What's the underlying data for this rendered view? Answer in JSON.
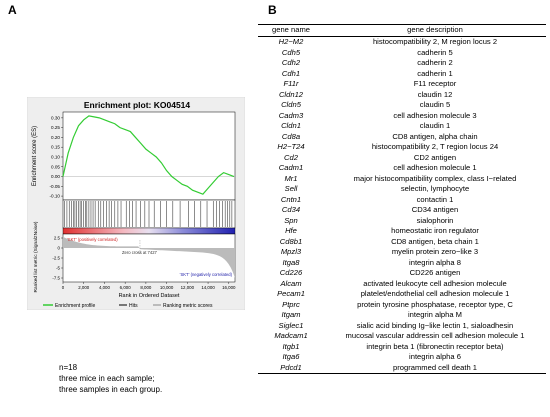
{
  "panels": {
    "a": "A",
    "b": "B"
  },
  "enrichment_plot": {
    "title": "Enrichment plot: KO04514",
    "es_ylabel": "Enrichment score (ES)",
    "rank_ylabel": "Ranked list metric (Signal2Noise)",
    "xlabel": "Rank in Ordered Dataset",
    "pos_label": "'SKT' (positively correlated)",
    "neg_label": "'SKT' (negatively correlated)",
    "zero_cross": "Zero cross at 7427",
    "legend": [
      "Enrichment profile",
      "Hits",
      "Ranking metric scores"
    ],
    "colors": {
      "profile": "#33cc33",
      "hits": "#000000",
      "metric": "#bbbbbb",
      "heat_pos": "#e03030",
      "heat_neg": "#2020b0"
    }
  },
  "chart_data": {
    "type": "line",
    "x": [
      0,
      500,
      1000,
      1500,
      2000,
      2500,
      3000,
      3500,
      4000,
      4500,
      5000,
      5500,
      6000,
      6500,
      7000,
      7500,
      8000,
      8500,
      9000,
      9500,
      10000,
      10500,
      11000,
      11500,
      12000,
      12500,
      13000,
      13500,
      14000,
      14500,
      15000,
      15500,
      16000,
      16500
    ],
    "series": [
      {
        "name": "Enrichment profile",
        "values": [
          0.0,
          0.12,
          0.2,
          0.26,
          0.29,
          0.31,
          0.305,
          0.3,
          0.29,
          0.28,
          0.27,
          0.25,
          0.24,
          0.23,
          0.2,
          0.17,
          0.14,
          0.12,
          0.1,
          0.07,
          0.03,
          0.0,
          -0.02,
          -0.04,
          -0.05,
          -0.07,
          -0.08,
          -0.09,
          -0.06,
          -0.03,
          0.0,
          0.02,
          0.01,
          0.0
        ]
      }
    ],
    "xlim": [
      0,
      16600
    ],
    "ylim": [
      -0.12,
      0.33
    ],
    "yticks": [
      -0.1,
      -0.05,
      0.0,
      0.05,
      0.1,
      0.15,
      0.2,
      0.25,
      0.3
    ],
    "ytick_labels": [
      "-0.10",
      "-0.05",
      "0.00",
      "0.05",
      "0.10",
      "0.15",
      "0.20",
      "0.25",
      "0.30"
    ],
    "xticks": [
      0,
      2000,
      4000,
      6000,
      8000,
      10000,
      12000,
      14000,
      16000
    ],
    "xtick_labels": [
      "0",
      "2,000",
      "4,000",
      "6,000",
      "8,000",
      "10,000",
      "12,000",
      "14,000",
      "16,000"
    ],
    "rank_yticks": [
      2.5,
      0,
      -2.5,
      -5,
      -7.5
    ],
    "rank_ytick_labels": [
      "2.5",
      "0",
      "-2.5",
      "-5",
      "-7.5"
    ],
    "rank_ylim": [
      -8.5,
      3.5
    ],
    "zero_cross_x": 7427,
    "hits": [
      150,
      380,
      600,
      820,
      1000,
      1150,
      1300,
      1500,
      1650,
      1800,
      2000,
      2150,
      2300,
      2500,
      2700,
      2900,
      3100,
      3400,
      3650,
      3900,
      4200,
      4450,
      4700,
      5000,
      5300,
      5600,
      6100,
      6400,
      6700,
      7050,
      7500,
      7900,
      8300,
      8800,
      9400,
      10000,
      10600,
      11300,
      12100,
      12700,
      13300,
      13900,
      14500,
      14800,
      15100,
      15400,
      15650,
      15900,
      16100,
      16300
    ]
  },
  "notes": [
    "n=18",
    "three mice in each sample;",
    "three samples in each group."
  ],
  "table": {
    "headers": [
      "gene name",
      "gene description"
    ],
    "rows": [
      [
        "H2−M2",
        "histocompatibility 2, M region locus 2"
      ],
      [
        "Cdh5",
        "cadherin 5"
      ],
      [
        "Cdh2",
        "cadherin 2"
      ],
      [
        "Cdh1",
        "cadherin 1"
      ],
      [
        "F11r",
        "F11 receptor"
      ],
      [
        "Cldn12",
        "claudin 12"
      ],
      [
        "Cldn5",
        "claudin 5"
      ],
      [
        "Cadm3",
        "cell adhesion molecule 3"
      ],
      [
        "Cldn1",
        "claudin 1"
      ],
      [
        "Cd8a",
        "CD8 antigen, alpha chain"
      ],
      [
        "H2−T24",
        "histocompatibility 2, T region locus 24"
      ],
      [
        "Cd2",
        "CD2 antigen"
      ],
      [
        "Cadm1",
        "cell adhesion molecule 1"
      ],
      [
        "Mr1",
        "major histocompatibility complex, class I−related"
      ],
      [
        "Sell",
        "selectin, lymphocyte"
      ],
      [
        "Cntn1",
        "contactin 1"
      ],
      [
        "Cd34",
        "CD34 antigen"
      ],
      [
        "Spn",
        "sialophorin"
      ],
      [
        "Hfe",
        "homeostatic iron regulator"
      ],
      [
        "Cd8b1",
        "CD8 antigen, beta chain 1"
      ],
      [
        "Mpzl3",
        "myelin protein zero−like 3"
      ],
      [
        "Itga8",
        "integrin alpha 8"
      ],
      [
        "Cd226",
        "CD226 antigen"
      ],
      [
        "Alcam",
        "activated leukocyte cell adhesion molecule"
      ],
      [
        "Pecam1",
        "platelet/endothelial cell adhesion molecule 1"
      ],
      [
        "Ptprc",
        "protein tyrosine phosphatase, receptor type, C"
      ],
      [
        "Itgam",
        "integrin alpha M"
      ],
      [
        "Siglec1",
        "sialic acid binding Ig−like lectin 1, sialoadhesin"
      ],
      [
        "Madcam1",
        "mucosal vascular addressin cell adhesion molecule 1"
      ],
      [
        "Itgb1",
        "integrin beta 1 (fibronectin receptor beta)"
      ],
      [
        "Itga6",
        "integrin alpha 6"
      ],
      [
        "Pdcd1",
        "programmed cell death 1"
      ]
    ]
  }
}
